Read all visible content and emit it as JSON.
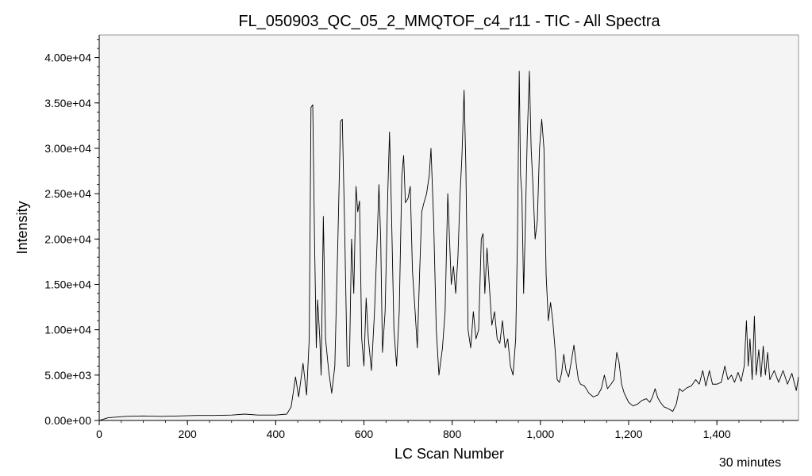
{
  "chart_data": {
    "type": "line",
    "title": "FL_050903_QC_05_2_MMQTOF_c4_r11 - TIC - All Spectra",
    "xlabel": "LC Scan Number",
    "ylabel": "Intensity",
    "footnote": "30 minutes",
    "xlim": [
      0,
      1585
    ],
    "ylim": [
      0,
      42500
    ],
    "grid": false,
    "x_ticks": [
      0,
      200,
      400,
      600,
      800,
      1000,
      1200,
      1400
    ],
    "x_tick_labels": [
      "0",
      "200",
      "400",
      "600",
      "800",
      "1,000",
      "1,200",
      "1,400"
    ],
    "y_ticks": [
      0,
      5000,
      10000,
      15000,
      20000,
      25000,
      30000,
      35000,
      40000
    ],
    "y_tick_labels": [
      "0.00e+00",
      "5.00e+03",
      "1.00e+04",
      "1.50e+04",
      "2.00e+04",
      "2.50e+04",
      "3.00e+04",
      "3.50e+04",
      "4.00e+04"
    ],
    "colors": {
      "line": "#000000",
      "plot_background": "#f4f4f4",
      "axis": "#000000"
    },
    "series": [
      {
        "values": [
          [
            0,
            0
          ],
          [
            20,
            300
          ],
          [
            60,
            450
          ],
          [
            100,
            500
          ],
          [
            140,
            450
          ],
          [
            180,
            500
          ],
          [
            220,
            550
          ],
          [
            260,
            550
          ],
          [
            300,
            600
          ],
          [
            330,
            700
          ],
          [
            360,
            600
          ],
          [
            400,
            600
          ],
          [
            425,
            700
          ],
          [
            435,
            1500
          ],
          [
            445,
            4800
          ],
          [
            452,
            2600
          ],
          [
            462,
            6300
          ],
          [
            470,
            2800
          ],
          [
            476,
            9000
          ],
          [
            480,
            34500
          ],
          [
            484,
            34800
          ],
          [
            488,
            20000
          ],
          [
            492,
            8000
          ],
          [
            495,
            13300
          ],
          [
            500,
            9000
          ],
          [
            503,
            5000
          ],
          [
            508,
            22500
          ],
          [
            513,
            9000
          ],
          [
            520,
            5500
          ],
          [
            527,
            3000
          ],
          [
            534,
            6000
          ],
          [
            541,
            20000
          ],
          [
            547,
            33000
          ],
          [
            551,
            33200
          ],
          [
            556,
            22000
          ],
          [
            562,
            6000
          ],
          [
            567,
            6000
          ],
          [
            572,
            20000
          ],
          [
            577,
            14000
          ],
          [
            582,
            25800
          ],
          [
            586,
            23000
          ],
          [
            590,
            24200
          ],
          [
            595,
            9000
          ],
          [
            600,
            6000
          ],
          [
            605,
            13500
          ],
          [
            610,
            9000
          ],
          [
            617,
            5500
          ],
          [
            624,
            12000
          ],
          [
            630,
            20000
          ],
          [
            634,
            26000
          ],
          [
            638,
            20000
          ],
          [
            642,
            7500
          ],
          [
            648,
            12000
          ],
          [
            654,
            25000
          ],
          [
            658,
            31800
          ],
          [
            662,
            24000
          ],
          [
            668,
            10000
          ],
          [
            674,
            6000
          ],
          [
            680,
            12000
          ],
          [
            686,
            27000
          ],
          [
            690,
            29200
          ],
          [
            694,
            24000
          ],
          [
            700,
            24500
          ],
          [
            705,
            25800
          ],
          [
            710,
            16500
          ],
          [
            716,
            12000
          ],
          [
            721,
            8000
          ],
          [
            726,
            16000
          ],
          [
            731,
            23000
          ],
          [
            736,
            24000
          ],
          [
            742,
            25000
          ],
          [
            748,
            27000
          ],
          [
            752,
            30000
          ],
          [
            758,
            22000
          ],
          [
            764,
            10000
          ],
          [
            770,
            5000
          ],
          [
            778,
            8000
          ],
          [
            784,
            12000
          ],
          [
            790,
            25000
          ],
          [
            794,
            20000
          ],
          [
            798,
            15000
          ],
          [
            803,
            17000
          ],
          [
            808,
            14000
          ],
          [
            813,
            18000
          ],
          [
            818,
            25000
          ],
          [
            822,
            29000
          ],
          [
            827,
            36400
          ],
          [
            831,
            28000
          ],
          [
            836,
            10000
          ],
          [
            842,
            8000
          ],
          [
            848,
            12000
          ],
          [
            854,
            9000
          ],
          [
            860,
            10000
          ],
          [
            866,
            20000
          ],
          [
            870,
            20600
          ],
          [
            874,
            14000
          ],
          [
            879,
            19000
          ],
          [
            884,
            15000
          ],
          [
            890,
            10500
          ],
          [
            896,
            12000
          ],
          [
            902,
            9000
          ],
          [
            908,
            8500
          ],
          [
            914,
            11000
          ],
          [
            920,
            8000
          ],
          [
            926,
            9000
          ],
          [
            932,
            6000
          ],
          [
            938,
            5000
          ],
          [
            944,
            9000
          ],
          [
            948,
            20000
          ],
          [
            952,
            38500
          ],
          [
            955,
            27000
          ],
          [
            958,
            25000
          ],
          [
            962,
            14000
          ],
          [
            966,
            22000
          ],
          [
            970,
            31000
          ],
          [
            975,
            38500
          ],
          [
            979,
            30000
          ],
          [
            983,
            26000
          ],
          [
            988,
            20000
          ],
          [
            993,
            22000
          ],
          [
            998,
            30000
          ],
          [
            1003,
            33200
          ],
          [
            1008,
            30000
          ],
          [
            1013,
            16000
          ],
          [
            1018,
            11000
          ],
          [
            1023,
            13000
          ],
          [
            1028,
            11000
          ],
          [
            1033,
            8000
          ],
          [
            1038,
            4500
          ],
          [
            1043,
            4200
          ],
          [
            1048,
            5200
          ],
          [
            1053,
            7300
          ],
          [
            1058,
            5500
          ],
          [
            1064,
            4800
          ],
          [
            1070,
            6500
          ],
          [
            1076,
            8300
          ],
          [
            1081,
            6300
          ],
          [
            1086,
            4500
          ],
          [
            1091,
            4000
          ],
          [
            1100,
            3800
          ],
          [
            1110,
            3000
          ],
          [
            1120,
            2600
          ],
          [
            1130,
            2800
          ],
          [
            1138,
            3500
          ],
          [
            1145,
            5000
          ],
          [
            1152,
            3500
          ],
          [
            1160,
            4000
          ],
          [
            1167,
            4500
          ],
          [
            1173,
            7500
          ],
          [
            1178,
            6500
          ],
          [
            1184,
            4000
          ],
          [
            1190,
            3000
          ],
          [
            1200,
            2000
          ],
          [
            1210,
            1600
          ],
          [
            1220,
            1800
          ],
          [
            1230,
            2200
          ],
          [
            1240,
            2400
          ],
          [
            1248,
            2000
          ],
          [
            1254,
            2600
          ],
          [
            1260,
            3500
          ],
          [
            1266,
            2500
          ],
          [
            1272,
            2000
          ],
          [
            1280,
            1500
          ],
          [
            1290,
            1300
          ],
          [
            1300,
            1000
          ],
          [
            1308,
            1800
          ],
          [
            1315,
            3500
          ],
          [
            1322,
            3200
          ],
          [
            1332,
            3600
          ],
          [
            1342,
            3800
          ],
          [
            1352,
            4500
          ],
          [
            1360,
            4000
          ],
          [
            1368,
            5500
          ],
          [
            1375,
            3800
          ],
          [
            1383,
            5500
          ],
          [
            1390,
            4000
          ],
          [
            1400,
            4000
          ],
          [
            1410,
            4200
          ],
          [
            1418,
            6000
          ],
          [
            1425,
            4500
          ],
          [
            1433,
            5000
          ],
          [
            1440,
            4200
          ],
          [
            1448,
            5300
          ],
          [
            1455,
            4300
          ],
          [
            1462,
            6000
          ],
          [
            1467,
            11000
          ],
          [
            1471,
            6000
          ],
          [
            1475,
            9000
          ],
          [
            1480,
            4500
          ],
          [
            1485,
            11500
          ],
          [
            1489,
            5000
          ],
          [
            1495,
            7800
          ],
          [
            1500,
            4800
          ],
          [
            1505,
            8200
          ],
          [
            1510,
            5000
          ],
          [
            1515,
            7500
          ],
          [
            1520,
            4500
          ],
          [
            1530,
            5500
          ],
          [
            1540,
            4200
          ],
          [
            1550,
            5500
          ],
          [
            1560,
            4000
          ],
          [
            1570,
            5200
          ],
          [
            1580,
            3300
          ],
          [
            1585,
            4800
          ]
        ]
      }
    ]
  }
}
